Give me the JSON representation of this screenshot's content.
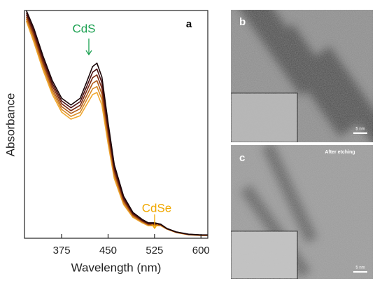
{
  "chart_data": {
    "type": "line",
    "panel_label": "a",
    "x_label": "Wavelength (nm)",
    "y_label": "Absorbance",
    "annotations": [
      "CdS",
      "CdSe"
    ],
    "annotation_colors": [
      "#1aa050",
      "#f0a800"
    ],
    "x": [
      318,
      330,
      345,
      360,
      375,
      390,
      405,
      415,
      425,
      432,
      440,
      450,
      460,
      475,
      490,
      505,
      515,
      525,
      535,
      545,
      560,
      580,
      600,
      611
    ],
    "series": [
      {
        "color": "#1a0608",
        "values": [
          1.0,
          0.923,
          0.8,
          0.692,
          0.615,
          0.585,
          0.615,
          0.683,
          0.754,
          0.769,
          0.708,
          0.508,
          0.323,
          0.185,
          0.114,
          0.083,
          0.068,
          0.068,
          0.062,
          0.043,
          0.028,
          0.018,
          0.015,
          0.015
        ]
      },
      {
        "color": "#4a0f12",
        "values": [
          0.991,
          0.911,
          0.788,
          0.68,
          0.603,
          0.573,
          0.6,
          0.663,
          0.729,
          0.743,
          0.683,
          0.489,
          0.311,
          0.178,
          0.11,
          0.08,
          0.065,
          0.065,
          0.061,
          0.042,
          0.027,
          0.017,
          0.014,
          0.014
        ]
      },
      {
        "color": "#7a2a12",
        "values": [
          0.982,
          0.899,
          0.775,
          0.668,
          0.591,
          0.56,
          0.584,
          0.644,
          0.705,
          0.717,
          0.659,
          0.471,
          0.299,
          0.17,
          0.105,
          0.077,
          0.063,
          0.063,
          0.06,
          0.042,
          0.027,
          0.017,
          0.014,
          0.014
        ]
      },
      {
        "color": "#b05a18",
        "values": [
          0.972,
          0.886,
          0.763,
          0.655,
          0.578,
          0.548,
          0.569,
          0.624,
          0.68,
          0.692,
          0.634,
          0.452,
          0.286,
          0.163,
          0.101,
          0.074,
          0.06,
          0.06,
          0.058,
          0.041,
          0.026,
          0.016,
          0.013,
          0.013
        ]
      },
      {
        "color": "#d98a25",
        "values": [
          0.963,
          0.874,
          0.75,
          0.643,
          0.566,
          0.535,
          0.553,
          0.605,
          0.656,
          0.666,
          0.61,
          0.434,
          0.274,
          0.155,
          0.096,
          0.071,
          0.058,
          0.058,
          0.057,
          0.041,
          0.026,
          0.016,
          0.013,
          0.013
        ]
      },
      {
        "color": "#f0a830",
        "values": [
          0.954,
          0.862,
          0.738,
          0.631,
          0.554,
          0.523,
          0.538,
          0.585,
          0.631,
          0.64,
          0.585,
          0.415,
          0.262,
          0.148,
          0.092,
          0.068,
          0.055,
          0.055,
          0.055,
          0.04,
          0.025,
          0.015,
          0.012,
          0.012
        ]
      }
    ],
    "xlim": [
      315,
      611
    ],
    "ylim": [
      0,
      1
    ],
    "xticks": [
      375,
      450,
      525,
      600
    ]
  },
  "images": {
    "b": {
      "label": "b",
      "scale": "5 nm"
    },
    "c": {
      "label": "c",
      "caption": "After etching",
      "scale": "5 nm"
    }
  }
}
